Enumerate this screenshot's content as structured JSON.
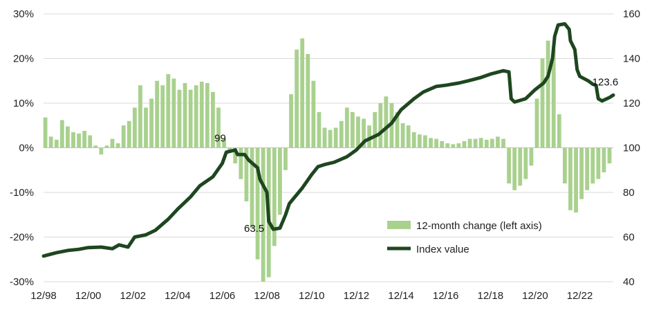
{
  "chart_data": {
    "type": "bar+line",
    "title": "",
    "colors": {
      "bar": "#a9d18e",
      "line": "#1e4620",
      "grid": "#d9d9d9",
      "axis": "#bfbfbf"
    },
    "x_ticks": [
      "12/98",
      "12/00",
      "12/02",
      "12/04",
      "12/06",
      "12/08",
      "12/10",
      "12/12",
      "12/14",
      "12/16",
      "12/18",
      "12/20",
      "12/22"
    ],
    "x_range": [
      1998.92,
      2024.42
    ],
    "y_left": {
      "range": [
        -30,
        30
      ],
      "ticks": [
        -30,
        -20,
        -10,
        0,
        10,
        20,
        30
      ],
      "format": "percent"
    },
    "y_right": {
      "range": [
        40,
        160
      ],
      "ticks": [
        40,
        60,
        80,
        100,
        120,
        140,
        160
      ]
    },
    "legend": {
      "bar_label": "12-month change (left axis)",
      "line_label": "Index value",
      "position": "bottom-right"
    },
    "annotations": [
      {
        "text": "99",
        "x": 2006.95,
        "value": 99
      },
      {
        "text": "63.5",
        "x": 2009.17,
        "value": 63.5
      },
      {
        "text": "123.6",
        "x": 2024.0,
        "value": 123.6
      }
    ],
    "series": [
      {
        "name": "12-month change (left axis)",
        "axis": "left",
        "kind": "bar",
        "points": [
          [
            1999.0,
            6.8
          ],
          [
            1999.25,
            2.5
          ],
          [
            1999.5,
            1.8
          ],
          [
            1999.75,
            6.2
          ],
          [
            2000.0,
            4.8
          ],
          [
            2000.25,
            3.5
          ],
          [
            2000.5,
            3.2
          ],
          [
            2000.75,
            3.8
          ],
          [
            2001.0,
            2.8
          ],
          [
            2001.25,
            0.5
          ],
          [
            2001.5,
            -1.5
          ],
          [
            2001.75,
            0.5
          ],
          [
            2002.0,
            2.0
          ],
          [
            2002.25,
            1.0
          ],
          [
            2002.5,
            5.0
          ],
          [
            2002.75,
            6.0
          ],
          [
            2003.0,
            9.0
          ],
          [
            2003.25,
            14.0
          ],
          [
            2003.5,
            9.0
          ],
          [
            2003.75,
            11.0
          ],
          [
            2004.0,
            15.0
          ],
          [
            2004.25,
            14.0
          ],
          [
            2004.5,
            16.5
          ],
          [
            2004.75,
            15.5
          ],
          [
            2005.0,
            13.0
          ],
          [
            2005.25,
            14.5
          ],
          [
            2005.5,
            13.0
          ],
          [
            2005.75,
            14.0
          ],
          [
            2006.0,
            14.8
          ],
          [
            2006.25,
            14.5
          ],
          [
            2006.5,
            12.5
          ],
          [
            2006.75,
            9.0
          ],
          [
            2007.0,
            2.0
          ],
          [
            2007.25,
            -1.0
          ],
          [
            2007.5,
            -3.5
          ],
          [
            2007.75,
            -7.0
          ],
          [
            2008.0,
            -12.0
          ],
          [
            2008.25,
            -18.0
          ],
          [
            2008.5,
            -25.0
          ],
          [
            2008.75,
            -30.0
          ],
          [
            2009.0,
            -29.0
          ],
          [
            2009.25,
            -22.0
          ],
          [
            2009.5,
            -15.0
          ],
          [
            2009.75,
            -5.0
          ],
          [
            2010.0,
            12.0
          ],
          [
            2010.25,
            22.0
          ],
          [
            2010.5,
            24.5
          ],
          [
            2010.75,
            21.0
          ],
          [
            2011.0,
            15.0
          ],
          [
            2011.25,
            8.0
          ],
          [
            2011.5,
            4.5
          ],
          [
            2011.75,
            4.0
          ],
          [
            2012.0,
            4.5
          ],
          [
            2012.25,
            6.0
          ],
          [
            2012.5,
            9.0
          ],
          [
            2012.75,
            8.0
          ],
          [
            2013.0,
            7.0
          ],
          [
            2013.25,
            6.5
          ],
          [
            2013.5,
            5.0
          ],
          [
            2013.75,
            8.0
          ],
          [
            2014.0,
            10.0
          ],
          [
            2014.25,
            11.5
          ],
          [
            2014.5,
            10.0
          ],
          [
            2014.75,
            8.0
          ],
          [
            2015.0,
            5.5
          ],
          [
            2015.25,
            5.0
          ],
          [
            2015.5,
            3.5
          ],
          [
            2015.75,
            3.0
          ],
          [
            2016.0,
            2.8
          ],
          [
            2016.25,
            2.2
          ],
          [
            2016.5,
            2.0
          ],
          [
            2016.75,
            1.5
          ],
          [
            2017.0,
            1.0
          ],
          [
            2017.25,
            0.8
          ],
          [
            2017.5,
            1.0
          ],
          [
            2017.75,
            1.5
          ],
          [
            2018.0,
            2.0
          ],
          [
            2018.25,
            2.0
          ],
          [
            2018.5,
            2.2
          ],
          [
            2018.75,
            1.8
          ],
          [
            2019.0,
            2.0
          ],
          [
            2019.25,
            2.5
          ],
          [
            2019.5,
            2.0
          ],
          [
            2019.75,
            -8.0
          ],
          [
            2020.0,
            -9.5
          ],
          [
            2020.25,
            -8.5
          ],
          [
            2020.5,
            -7.0
          ],
          [
            2020.75,
            -4.0
          ],
          [
            2021.0,
            11.0
          ],
          [
            2021.25,
            20.0
          ],
          [
            2021.5,
            24.0
          ],
          [
            2021.75,
            22.0
          ],
          [
            2022.0,
            7.5
          ],
          [
            2022.25,
            -8.0
          ],
          [
            2022.5,
            -14.0
          ],
          [
            2022.75,
            -14.5
          ],
          [
            2023.0,
            -11.5
          ],
          [
            2023.25,
            -9.5
          ],
          [
            2023.5,
            -8.0
          ],
          [
            2023.75,
            -7.0
          ],
          [
            2024.0,
            -5.5
          ],
          [
            2024.25,
            -3.5
          ]
        ]
      },
      {
        "name": "Index value",
        "axis": "right",
        "kind": "line",
        "points": [
          [
            1998.92,
            51.5
          ],
          [
            1999.5,
            53.0
          ],
          [
            2000.0,
            54.0
          ],
          [
            2000.5,
            54.5
          ],
          [
            2000.92,
            55.3
          ],
          [
            2001.5,
            55.5
          ],
          [
            2002.0,
            54.8
          ],
          [
            2002.3,
            56.5
          ],
          [
            2002.7,
            55.5
          ],
          [
            2003.0,
            60.0
          ],
          [
            2003.5,
            61.0
          ],
          [
            2003.92,
            63.0
          ],
          [
            2004.5,
            68.0
          ],
          [
            2004.92,
            72.5
          ],
          [
            2005.5,
            78.0
          ],
          [
            2005.92,
            83.0
          ],
          [
            2006.5,
            87.0
          ],
          [
            2006.92,
            93.0
          ],
          [
            2007.1,
            98.0
          ],
          [
            2007.5,
            99.0
          ],
          [
            2007.6,
            97.0
          ],
          [
            2007.92,
            97.0
          ],
          [
            2008.1,
            94.5
          ],
          [
            2008.5,
            91.0
          ],
          [
            2008.6,
            86.0
          ],
          [
            2008.92,
            80.0
          ],
          [
            2009.0,
            67.0
          ],
          [
            2009.2,
            63.5
          ],
          [
            2009.5,
            64.0
          ],
          [
            2009.75,
            70.0
          ],
          [
            2009.92,
            75.0
          ],
          [
            2010.5,
            82.0
          ],
          [
            2010.92,
            88.0
          ],
          [
            2011.2,
            91.5
          ],
          [
            2011.5,
            92.5
          ],
          [
            2011.92,
            93.5
          ],
          [
            2012.5,
            96.0
          ],
          [
            2012.92,
            99.0
          ],
          [
            2013.3,
            103.0
          ],
          [
            2013.92,
            106.0
          ],
          [
            2014.5,
            111.0
          ],
          [
            2014.92,
            117.0
          ],
          [
            2015.5,
            122.0
          ],
          [
            2015.92,
            125.0
          ],
          [
            2016.5,
            127.5
          ],
          [
            2016.92,
            128.0
          ],
          [
            2017.5,
            129.0
          ],
          [
            2017.92,
            130.0
          ],
          [
            2018.5,
            131.5
          ],
          [
            2018.92,
            133.0
          ],
          [
            2019.5,
            134.5
          ],
          [
            2019.75,
            134.0
          ],
          [
            2019.85,
            122.0
          ],
          [
            2020.0,
            120.5
          ],
          [
            2020.5,
            122.0
          ],
          [
            2020.92,
            126.0
          ],
          [
            2021.3,
            129.0
          ],
          [
            2021.5,
            132.0
          ],
          [
            2021.7,
            140.0
          ],
          [
            2021.8,
            150.0
          ],
          [
            2021.95,
            155.0
          ],
          [
            2022.25,
            155.5
          ],
          [
            2022.45,
            153.0
          ],
          [
            2022.5,
            148.0
          ],
          [
            2022.7,
            144.0
          ],
          [
            2022.8,
            135.0
          ],
          [
            2022.92,
            132.0
          ],
          [
            2023.3,
            130.0
          ],
          [
            2023.5,
            128.5
          ],
          [
            2023.65,
            128.0
          ],
          [
            2023.75,
            122.0
          ],
          [
            2023.92,
            121.0
          ],
          [
            2024.25,
            122.5
          ],
          [
            2024.42,
            123.6
          ]
        ]
      }
    ]
  }
}
